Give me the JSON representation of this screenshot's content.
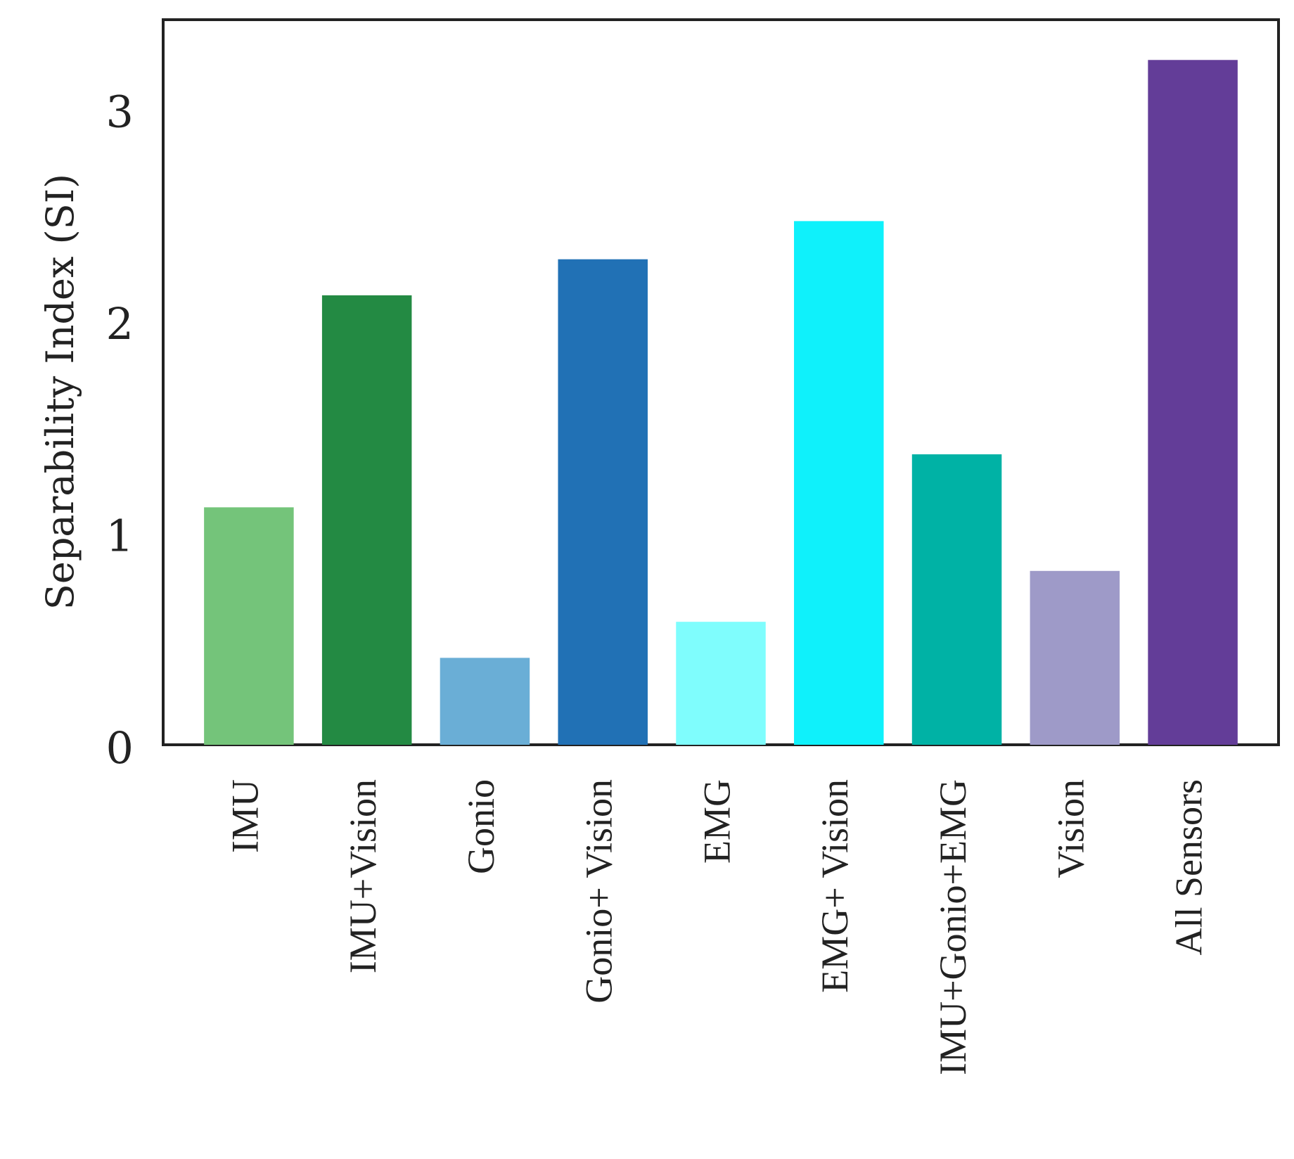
{
  "chart_data": {
    "type": "bar",
    "categories": [
      "IMU",
      "IMU+Vision",
      "Gonio",
      "Gonio+ Vision",
      "EMG",
      "EMG+ Vision",
      "IMU+Gonio+EMG",
      "Vision",
      "All Sensors"
    ],
    "values": [
      1.12,
      2.12,
      0.41,
      2.29,
      0.58,
      2.47,
      1.37,
      0.82,
      3.23
    ],
    "colors": [
      "#74c47a",
      "#238a43",
      "#6aaed6",
      "#2171b5",
      "#7ffdfd",
      "#0ff1fb",
      "#00b2a5",
      "#9e9ac8",
      "#633d98"
    ],
    "ylabel": "Separability Index (SI)",
    "xlabel": "",
    "ylim": [
      0,
      3.42
    ],
    "yticks": [
      0,
      1,
      2,
      3
    ],
    "grid": false,
    "legend": "none"
  }
}
